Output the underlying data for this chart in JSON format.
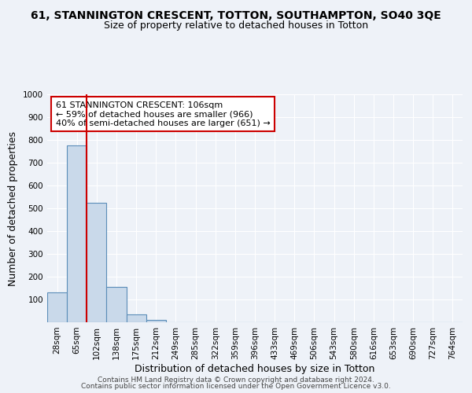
{
  "title": "61, STANNINGTON CRESCENT, TOTTON, SOUTHAMPTON, SO40 3QE",
  "subtitle": "Size of property relative to detached houses in Totton",
  "xlabel": "Distribution of detached houses by size in Totton",
  "ylabel": "Number of detached properties",
  "footer_line1": "Contains HM Land Registry data © Crown copyright and database right 2024.",
  "footer_line2": "Contains public sector information licensed under the Open Government Licence v3.0.",
  "bin_labels": [
    "28sqm",
    "65sqm",
    "102sqm",
    "138sqm",
    "175sqm",
    "212sqm",
    "249sqm",
    "285sqm",
    "322sqm",
    "359sqm",
    "396sqm",
    "433sqm",
    "469sqm",
    "506sqm",
    "543sqm",
    "580sqm",
    "616sqm",
    "653sqm",
    "690sqm",
    "727sqm",
    "764sqm"
  ],
  "bar_heights": [
    130,
    775,
    525,
    155,
    35,
    10,
    0,
    0,
    0,
    0,
    0,
    0,
    0,
    0,
    0,
    0,
    0,
    0,
    0,
    0,
    0
  ],
  "bar_color": "#c9d9ea",
  "bar_edge_color": "#5b8db8",
  "property_line_x": 1.5,
  "annotation_text": "61 STANNINGTON CRESCENT: 106sqm\n← 59% of detached houses are smaller (966)\n40% of semi-detached houses are larger (651) →",
  "annotation_box_color": "#ffffff",
  "annotation_box_edge": "#cc0000",
  "red_line_color": "#cc0000",
  "ylim": [
    0,
    1000
  ],
  "yticks": [
    0,
    100,
    200,
    300,
    400,
    500,
    600,
    700,
    800,
    900,
    1000
  ],
  "background_color": "#eef2f8",
  "grid_color": "#ffffff",
  "title_fontsize": 10,
  "subtitle_fontsize": 9,
  "axis_label_fontsize": 9,
  "tick_fontsize": 7.5,
  "annotation_fontsize": 8,
  "footer_fontsize": 6.5
}
